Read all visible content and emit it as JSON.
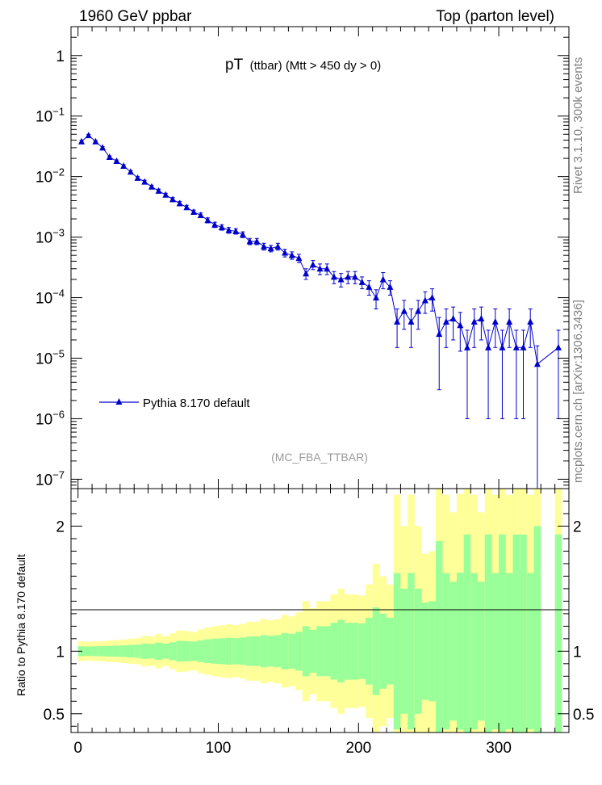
{
  "header": {
    "left": "1960 GeV ppbar",
    "right": "Top (parton level)"
  },
  "plot_title": {
    "main": "pT",
    "sub": "(ttbar) (Mtt > 450 dy > 0)"
  },
  "analysis_id": "(MC_FBA_TTBAR)",
  "side_labels": {
    "rivet": "Rivet 3.1.10,  300k events",
    "mcplots": "mcplots.cern.ch [arXiv:1306.3436]"
  },
  "ratio_ylabel": "Ratio to Pythia 8.170 default",
  "colors": {
    "series": "#0000cc",
    "band_inner": "#99ff99",
    "band_outer": "#ffff99"
  },
  "chart_data": {
    "type": "line",
    "xlim": [
      -5,
      350
    ],
    "main": {
      "yscale": "log",
      "ylim": [
        7e-08,
        3
      ],
      "yticks": [
        {
          "v": 1,
          "base": "1",
          "exp": ""
        },
        {
          "v": 0.1,
          "base": "10",
          "exp": "−1"
        },
        {
          "v": 0.01,
          "base": "10",
          "exp": "−2"
        },
        {
          "v": 0.001,
          "base": "10",
          "exp": "−3"
        },
        {
          "v": 0.0001,
          "base": "10",
          "exp": "−4"
        },
        {
          "v": 1e-05,
          "base": "10",
          "exp": "−5"
        },
        {
          "v": 1e-06,
          "base": "10",
          "exp": "−6"
        },
        {
          "v": 1e-07,
          "base": "10",
          "exp": "−7"
        }
      ]
    },
    "ratio": {
      "ylim": [
        0.35,
        2.3
      ],
      "yticks": [
        0.5,
        1,
        2
      ],
      "yticklabels": [
        "0.5",
        "1",
        "2"
      ]
    },
    "xticks": [
      0,
      100,
      200,
      300
    ],
    "xticklabels": [
      "0",
      "100",
      "200",
      "300"
    ],
    "series": [
      {
        "name": "Pythia 8.170 default",
        "x": [
          2.5,
          7.5,
          12.5,
          17.5,
          22.5,
          27.5,
          32.5,
          37.5,
          42.5,
          47.5,
          52.5,
          57.5,
          62.5,
          67.5,
          72.5,
          77.5,
          82.5,
          87.5,
          92.5,
          97.5,
          102.5,
          107.5,
          112.5,
          117.5,
          122.5,
          127.5,
          132.5,
          137.5,
          142.5,
          147.5,
          152.5,
          157.5,
          162.5,
          167.5,
          172.5,
          177.5,
          182.5,
          187.5,
          192.5,
          197.5,
          202.5,
          207.5,
          212.5,
          217.5,
          222.5,
          227.5,
          232.5,
          237.5,
          242.5,
          247.5,
          252.5,
          257.5,
          262.5,
          267.5,
          272.5,
          277.5,
          282.5,
          287.5,
          292.5,
          297.5,
          302.5,
          307.5,
          312.5,
          317.5,
          322.5,
          327.5,
          342.5
        ],
        "y": [
          0.038,
          0.048,
          0.038,
          0.03,
          0.021,
          0.018,
          0.015,
          0.012,
          0.0095,
          0.0082,
          0.0068,
          0.0058,
          0.005,
          0.0042,
          0.0036,
          0.0031,
          0.0026,
          0.0023,
          0.0019,
          0.0016,
          0.00145,
          0.0013,
          0.00125,
          0.0011,
          0.00085,
          0.00085,
          0.0007,
          0.00065,
          0.0007,
          0.00055,
          0.0005,
          0.00045,
          0.00025,
          0.00035,
          0.0003,
          0.0003,
          0.00022,
          0.0002,
          0.00022,
          0.00022,
          0.00018,
          0.00015,
          0.0001,
          0.0002,
          0.00015,
          4e-05,
          6e-05,
          4e-05,
          6e-05,
          9e-05,
          0.0001,
          2.5e-05,
          4e-05,
          4.5e-05,
          3.5e-05,
          1.5e-05,
          4e-05,
          4.5e-05,
          1.5e-05,
          4e-05,
          1.5e-05,
          4e-05,
          1.5e-05,
          1.5e-05,
          4e-05,
          8e-06,
          1.5e-05
        ],
        "err_lo": [
          0.0015,
          0.0018,
          0.0015,
          0.0012,
          0.0009,
          0.0008,
          0.0007,
          0.0006,
          0.0005,
          0.0005,
          0.0004,
          0.0004,
          0.0003,
          0.0003,
          0.0003,
          0.00025,
          0.0002,
          0.0002,
          0.00018,
          0.00016,
          0.00015,
          0.00014,
          0.00013,
          0.00012,
          0.0001,
          0.0001,
          9e-05,
          8e-05,
          9e-05,
          8e-05,
          7e-05,
          7e-05,
          5e-05,
          6e-05,
          6e-05,
          6e-05,
          5e-05,
          5e-05,
          5e-05,
          5e-05,
          4e-05,
          4e-05,
          3.5e-05,
          6e-05,
          4e-05,
          2.5e-05,
          3e-05,
          2.5e-05,
          3e-05,
          3.5e-05,
          4e-05,
          2.2e-05,
          2.5e-05,
          2.5e-05,
          2.2e-05,
          1.4e-05,
          2.5e-05,
          2.5e-05,
          1.4e-05,
          2.5e-05,
          1.4e-05,
          2.5e-05,
          1.4e-05,
          1.4e-05,
          2.5e-05,
          8e-06,
          1.4e-05
        ],
        "err_hi": [
          0.0015,
          0.0018,
          0.0015,
          0.0012,
          0.0009,
          0.0008,
          0.0007,
          0.0006,
          0.0005,
          0.0005,
          0.0004,
          0.0004,
          0.0003,
          0.0003,
          0.0003,
          0.00025,
          0.0002,
          0.0002,
          0.00018,
          0.00016,
          0.00015,
          0.00014,
          0.00013,
          0.00012,
          0.0001,
          0.0001,
          9e-05,
          8e-05,
          9e-05,
          8e-05,
          7e-05,
          7e-05,
          5e-05,
          6e-05,
          6e-05,
          6e-05,
          5e-05,
          5e-05,
          5e-05,
          5e-05,
          4e-05,
          4e-05,
          3.5e-05,
          6e-05,
          4e-05,
          2.5e-05,
          3e-05,
          2.5e-05,
          3e-05,
          3.5e-05,
          4e-05,
          2.2e-05,
          2.5e-05,
          2.5e-05,
          2.2e-05,
          1.4e-05,
          2.5e-05,
          2.5e-05,
          1.4e-05,
          2.5e-05,
          1.4e-05,
          2.5e-05,
          1.4e-05,
          1.4e-05,
          2.5e-05,
          8e-06,
          1.4e-05
        ]
      }
    ],
    "legend": {
      "entry": "Pythia 8.170 default",
      "position": "lower-left"
    }
  }
}
